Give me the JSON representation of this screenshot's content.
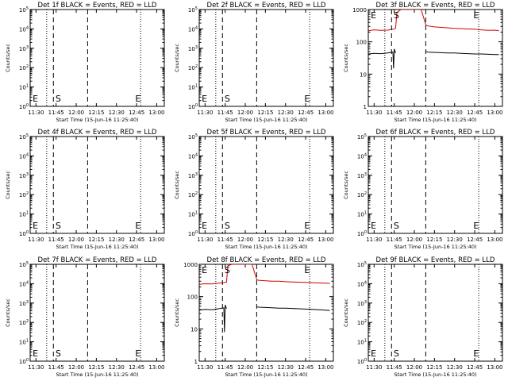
{
  "panels_common": {
    "xlabel": "Start Time (15-Jun-16 11:25:40)",
    "ylabel": "Counts/sec",
    "x_ticks": [
      "11:30",
      "11:45",
      "12:00",
      "12:15",
      "12:30",
      "12:45",
      "13:00"
    ],
    "x_tick_minutes": [
      30,
      45,
      60,
      75,
      90,
      105,
      120
    ],
    "x_range_minutes": [
      25.67,
      125.67
    ],
    "markers": {
      "dotted_lines_min": [
        25.67,
        38,
        108
      ],
      "dashed_lines_min": [
        43,
        68.5
      ],
      "labels": [
        {
          "text": "E",
          "x_min": 27.5
        },
        {
          "text": "S",
          "x_min": 44.5
        },
        {
          "text": "E",
          "x_min": 104
        }
      ]
    },
    "colors": {
      "events": "#000000",
      "lld": "#d00000"
    }
  },
  "chart_data": [
    {
      "id": "1",
      "type": "line",
      "title": "Det 1f BLACK = Events, RED = LLD",
      "yscale": "log",
      "ylim": [
        1,
        100000
      ],
      "y_ticks": [
        "10^0",
        "10^1",
        "10^2",
        "10^3",
        "10^4",
        "10^5"
      ],
      "series": []
    },
    {
      "id": "2",
      "type": "line",
      "title": "Det 2f BLACK = Events, RED = LLD",
      "yscale": "log",
      "ylim": [
        1,
        100000
      ],
      "y_ticks": [
        "10^0",
        "10^1",
        "10^2",
        "10^3",
        "10^4",
        "10^5"
      ],
      "series": []
    },
    {
      "id": "3",
      "type": "line",
      "title": "Det 3f BLACK = Events, RED = LLD",
      "yscale": "log",
      "ylim": [
        1,
        1000
      ],
      "y_ticks": [
        "1",
        "10",
        "100",
        "1000"
      ],
      "series": [
        {
          "color": "#d00000",
          "x": [
            25.67,
            30,
            35,
            40,
            44,
            46,
            47,
            50,
            55,
            60,
            62,
            63,
            65,
            68.6,
            70,
            75,
            80,
            85,
            90,
            95,
            100,
            105,
            110,
            115,
            120,
            123
          ],
          "y": [
            220,
            235,
            225,
            230,
            245,
            260,
            800,
            1000,
            1000,
            1000,
            1000,
            1000,
            1000,
            330,
            310,
            290,
            280,
            270,
            260,
            255,
            250,
            245,
            235,
            225,
            230,
            220
          ]
        },
        {
          "color": "#000000",
          "x": [
            25.67,
            30,
            35,
            40,
            44,
            44.5,
            45,
            46
          ],
          "y": [
            42,
            44,
            43,
            45,
            48,
            15,
            60,
            45
          ]
        },
        {
          "color": "#000000",
          "x": [
            68.6,
            70,
            75,
            80,
            85,
            90,
            95,
            100,
            105,
            110,
            115,
            120,
            123
          ],
          "y": [
            50,
            48,
            47,
            46,
            45,
            45,
            44,
            43,
            42,
            42,
            41,
            40,
            40
          ]
        }
      ]
    },
    {
      "id": "4",
      "type": "line",
      "title": "Det 4f BLACK = Events, RED = LLD",
      "yscale": "log",
      "ylim": [
        1,
        100000
      ],
      "y_ticks": [
        "10^0",
        "10^1",
        "10^2",
        "10^3",
        "10^4",
        "10^5"
      ],
      "series": []
    },
    {
      "id": "5",
      "type": "line",
      "title": "Det 5f BLACK = Events, RED = LLD",
      "yscale": "log",
      "ylim": [
        1,
        100000
      ],
      "y_ticks": [
        "10^0",
        "10^1",
        "10^2",
        "10^3",
        "10^4",
        "10^5"
      ],
      "series": []
    },
    {
      "id": "6",
      "type": "line",
      "title": "Det 6f BLACK = Events, RED = LLD",
      "yscale": "log",
      "ylim": [
        1,
        100000
      ],
      "y_ticks": [
        "10^0",
        "10^1",
        "10^2",
        "10^3",
        "10^4",
        "10^5"
      ],
      "series": []
    },
    {
      "id": "7",
      "type": "line",
      "title": "Det 7f BLACK = Events, RED = LLD",
      "yscale": "log",
      "ylim": [
        1,
        100000
      ],
      "y_ticks": [
        "10^0",
        "10^1",
        "10^2",
        "10^3",
        "10^4",
        "10^5"
      ],
      "series": []
    },
    {
      "id": "8",
      "type": "line",
      "title": "Det 8f BLACK = Events, RED = LLD",
      "yscale": "log",
      "ylim": [
        1,
        1000
      ],
      "y_ticks": [
        "1",
        "10",
        "100",
        "1000"
      ],
      "series": [
        {
          "color": "#d00000",
          "x": [
            25.67,
            30,
            35,
            40,
            44,
            46,
            47,
            50,
            55,
            60,
            62,
            63,
            64,
            65,
            68.6,
            70,
            75,
            80,
            85,
            90,
            95,
            100,
            105,
            110,
            115,
            120,
            123
          ],
          "y": [
            240,
            250,
            245,
            260,
            270,
            280,
            900,
            1000,
            1000,
            1000,
            1000,
            1000,
            1000,
            1000,
            330,
            320,
            310,
            300,
            300,
            290,
            285,
            280,
            275,
            270,
            265,
            260,
            255
          ]
        },
        {
          "color": "#000000",
          "x": [
            25.67,
            30,
            35,
            40,
            44,
            44.5,
            45,
            46
          ],
          "y": [
            38,
            40,
            39,
            42,
            45,
            8,
            55,
            42
          ]
        },
        {
          "color": "#000000",
          "x": [
            68.6,
            70,
            75,
            80,
            85,
            90,
            95,
            100,
            105,
            110,
            115,
            120,
            123
          ],
          "y": [
            48,
            47,
            46,
            45,
            44,
            44,
            43,
            42,
            41,
            40,
            39,
            38,
            37
          ]
        }
      ]
    },
    {
      "id": "9",
      "type": "line",
      "title": "Det 9f BLACK = Events, RED = LLD",
      "yscale": "log",
      "ylim": [
        1,
        100000
      ],
      "y_ticks": [
        "10^0",
        "10^1",
        "10^2",
        "10^3",
        "10^4",
        "10^5"
      ],
      "series": []
    }
  ]
}
